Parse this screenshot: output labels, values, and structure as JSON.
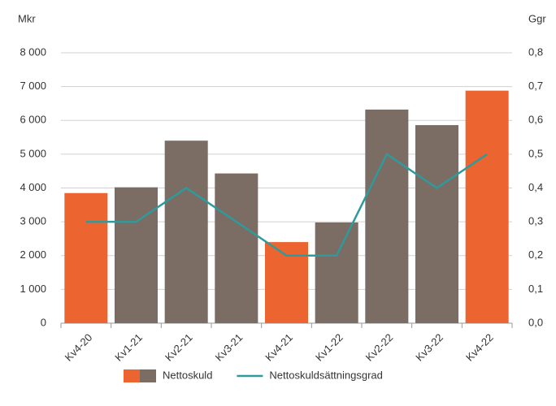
{
  "chart_data": {
    "type": "bar",
    "y_label": "Mkr",
    "y2_label": "Ggr",
    "categories": [
      "Kv4-20",
      "Kv1-21",
      "Kv2-21",
      "Kv3-21",
      "Kv4-21",
      "Kv1-22",
      "Kv2-22",
      "Kv3-22",
      "Kv4-22"
    ],
    "series": [
      {
        "name": "Nettoskuld",
        "type": "bar",
        "colors": [
          "#ec6531",
          "#7b6d64",
          "#7b6d64",
          "#7b6d64",
          "#ec6531",
          "#7b6d64",
          "#7b6d64",
          "#7b6d64",
          "#ec6531"
        ],
        "values": [
          3850,
          4020,
          5400,
          4430,
          2400,
          2980,
          6320,
          5860,
          6880
        ]
      },
      {
        "name": "Nettoskuldsättningsgrad",
        "type": "line",
        "axis": "y2",
        "color": "#2e9a9c",
        "values": [
          0.3,
          0.3,
          0.4,
          0.3,
          0.2,
          0.2,
          0.5,
          0.4,
          0.5
        ]
      }
    ],
    "ylim": [
      0,
      8000
    ],
    "yticks": [
      0,
      {
        "value": 1000,
        "label": "1 000"
      },
      {
        "value": 2000,
        "label": "2 000"
      },
      {
        "value": 3000,
        "label": "3 000"
      },
      {
        "value": 4000,
        "label": "4 000"
      },
      {
        "value": 5000,
        "label": "5 000"
      },
      {
        "value": 6000,
        "label": "6 000"
      },
      {
        "value": 7000,
        "label": "7 000"
      },
      {
        "value": 8000,
        "label": "8 000"
      }
    ],
    "y2lim": [
      0,
      0.8
    ],
    "y2ticks": [
      {
        "value": 0,
        "label": "0,0"
      },
      {
        "value": 0.1,
        "label": "0,1"
      },
      {
        "value": 0.2,
        "label": "0,2"
      },
      {
        "value": 0.3,
        "label": "0,3"
      },
      {
        "value": 0.4,
        "label": "0,4"
      },
      {
        "value": 0.5,
        "label": "0,5"
      },
      {
        "value": 0.6,
        "label": "0,6"
      },
      {
        "value": 0.7,
        "label": "0,7"
      },
      {
        "value": 0.8,
        "label": "0,8"
      }
    ],
    "grid": true
  }
}
